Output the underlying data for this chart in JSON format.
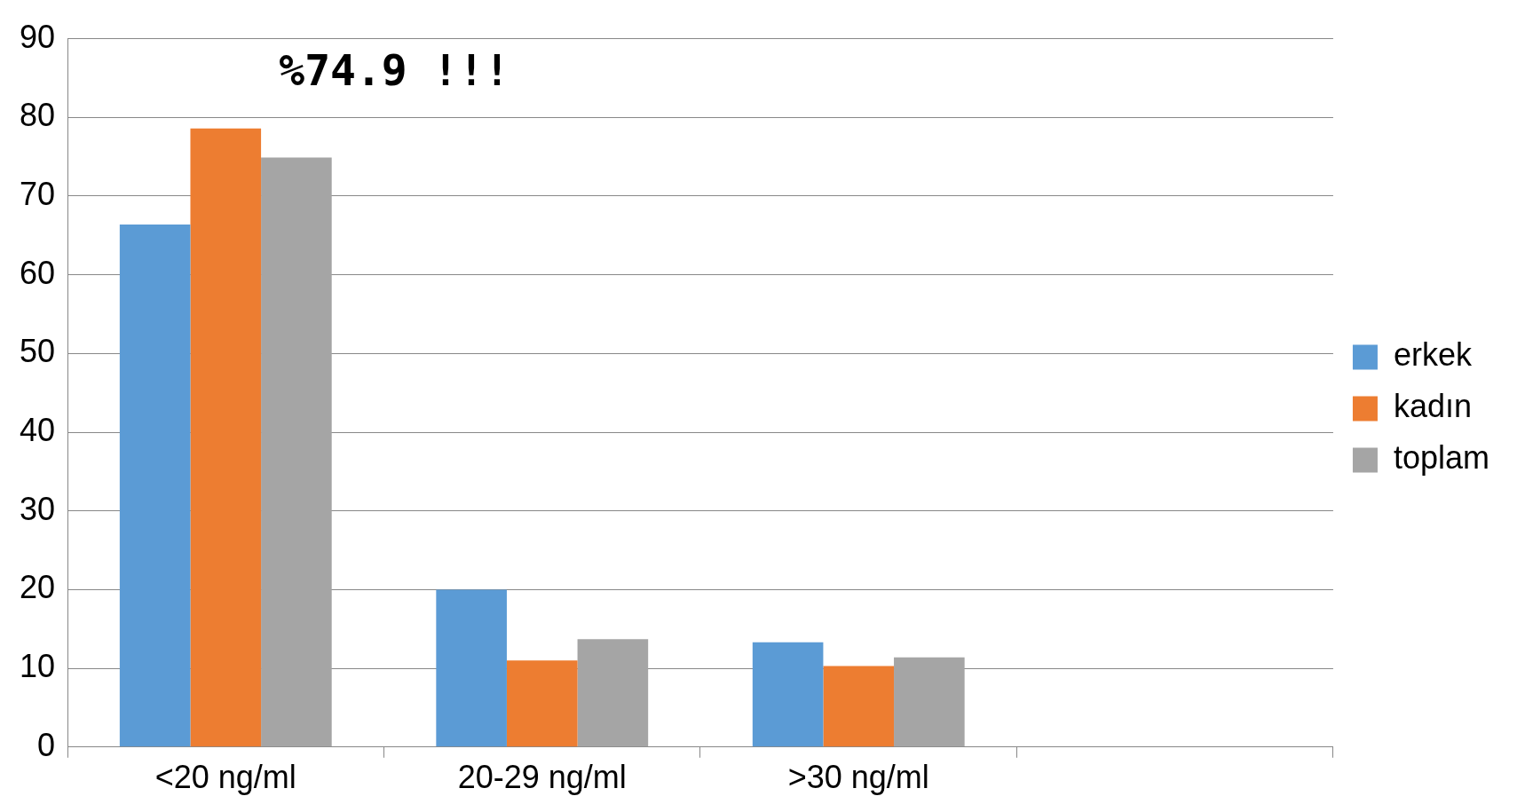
{
  "chart_data": {
    "type": "bar",
    "categories": [
      "<20 ng/ml",
      "20-29 ng/ml",
      ">30 ng/ml",
      null
    ],
    "series": [
      {
        "name": "erkek",
        "color": "#5b9bd5",
        "values": [
          66.4,
          20.0,
          13.3,
          null
        ]
      },
      {
        "name": "kadın",
        "color": "#ed7d31",
        "values": [
          78.6,
          11.0,
          10.3,
          null
        ]
      },
      {
        "name": "toplam",
        "color": "#a5a5a5",
        "values": [
          74.9,
          13.7,
          11.4,
          null
        ]
      }
    ],
    "ylim": [
      0,
      90
    ],
    "yticks": [
      0,
      10,
      20,
      30,
      40,
      50,
      60,
      70,
      80,
      90
    ],
    "grid": "y",
    "legend": "right",
    "annotations": [
      "%74.9 !!!"
    ]
  }
}
